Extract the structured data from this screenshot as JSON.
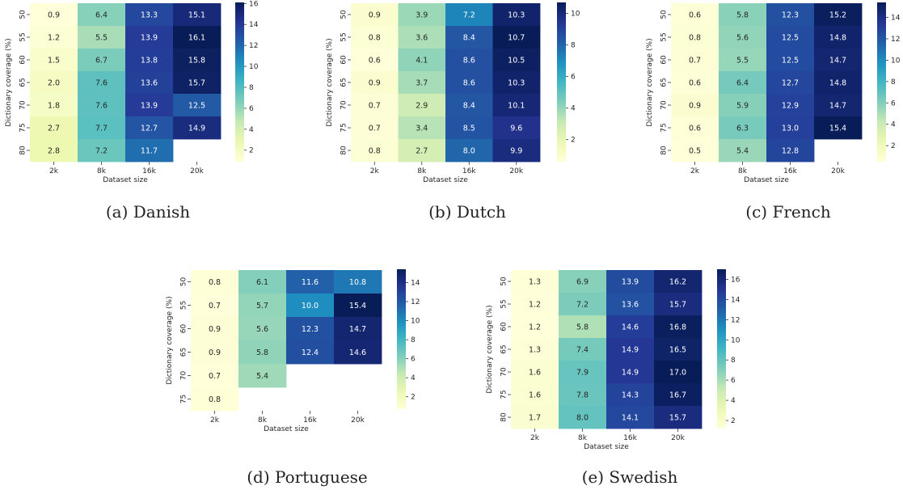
{
  "figure": {
    "charts": [
      {
        "caption": "(a) Danish"
      },
      {
        "caption": "(b) Dutch"
      },
      {
        "caption": "(c) French"
      },
      {
        "caption": "(d) Portuguese"
      },
      {
        "caption": "(e) Swedish"
      }
    ]
  },
  "chart_data": [
    {
      "type": "heatmap",
      "title": "",
      "xlabel": "Dataset size",
      "ylabel": "Dictionary coverage (%)",
      "x_categories": [
        "2k",
        "8k",
        "16k",
        "20k"
      ],
      "y_categories": [
        "50",
        "55",
        "60",
        "65",
        "70",
        "75",
        "80"
      ],
      "values": [
        [
          0.9,
          6.4,
          13.3,
          15.1
        ],
        [
          1.2,
          5.5,
          13.9,
          16.1
        ],
        [
          1.5,
          6.7,
          13.8,
          15.8
        ],
        [
          2.0,
          7.6,
          13.6,
          15.7
        ],
        [
          1.8,
          7.6,
          13.9,
          12.5
        ],
        [
          2.7,
          7.7,
          12.7,
          14.9
        ],
        [
          2.8,
          7.2,
          11.7,
          null
        ]
      ],
      "colorbar_ticks": [
        2,
        4,
        6,
        8,
        10,
        12,
        14,
        16
      ],
      "colorbar_range": [
        0.9,
        16.1
      ],
      "colormap": "YlGnBu"
    },
    {
      "type": "heatmap",
      "title": "",
      "xlabel": "Dataset size",
      "ylabel": "Dictionary coverage (%)",
      "x_categories": [
        "2k",
        "8k",
        "16k",
        "20k"
      ],
      "y_categories": [
        "50",
        "55",
        "60",
        "65",
        "70",
        "75",
        "80"
      ],
      "values": [
        [
          0.9,
          3.9,
          7.2,
          10.3
        ],
        [
          0.8,
          3.6,
          8.4,
          10.7
        ],
        [
          0.6,
          4.1,
          8.6,
          10.5
        ],
        [
          0.9,
          3.7,
          8.6,
          10.3
        ],
        [
          0.7,
          2.9,
          8.4,
          10.1
        ],
        [
          0.7,
          3.4,
          8.5,
          9.6
        ],
        [
          0.8,
          2.7,
          8.0,
          9.9
        ]
      ],
      "colorbar_ticks": [
        2,
        4,
        6,
        8,
        10
      ],
      "colorbar_range": [
        0.6,
        10.7
      ],
      "colormap": "YlGnBu"
    },
    {
      "type": "heatmap",
      "title": "",
      "xlabel": "Dataset size",
      "ylabel": "Dictionary coverage (%)",
      "x_categories": [
        "2k",
        "8k",
        "16k",
        "20k"
      ],
      "y_categories": [
        "50",
        "55",
        "60",
        "65",
        "70",
        "75",
        "80"
      ],
      "values": [
        [
          0.6,
          5.8,
          12.3,
          15.2
        ],
        [
          0.8,
          5.6,
          12.5,
          14.8
        ],
        [
          0.7,
          5.5,
          12.5,
          14.7
        ],
        [
          0.6,
          6.4,
          12.7,
          14.8
        ],
        [
          0.9,
          5.9,
          12.9,
          14.7
        ],
        [
          0.6,
          6.3,
          13.0,
          15.4
        ],
        [
          0.5,
          5.4,
          12.8,
          null
        ]
      ],
      "colorbar_ticks": [
        2,
        4,
        6,
        8,
        10,
        12,
        14
      ],
      "colorbar_range": [
        0.5,
        15.4
      ],
      "colormap": "YlGnBu"
    },
    {
      "type": "heatmap",
      "title": "",
      "xlabel": "Dataset size",
      "ylabel": "Dictionary coverage (%)",
      "x_categories": [
        "2k",
        "8k",
        "16k",
        "20k"
      ],
      "y_categories": [
        "50",
        "55",
        "60",
        "65",
        "70",
        "75"
      ],
      "values": [
        [
          0.8,
          6.1,
          11.6,
          10.8
        ],
        [
          0.7,
          5.7,
          10.0,
          15.4
        ],
        [
          0.9,
          5.6,
          12.3,
          14.7
        ],
        [
          0.9,
          5.8,
          12.4,
          14.6
        ],
        [
          0.7,
          5.4,
          null,
          null
        ],
        [
          0.8,
          null,
          null,
          null
        ]
      ],
      "colorbar_ticks": [
        2,
        4,
        6,
        8,
        10,
        12,
        14
      ],
      "colorbar_range": [
        0.7,
        15.4
      ],
      "colormap": "YlGnBu"
    },
    {
      "type": "heatmap",
      "title": "",
      "xlabel": "Dataset size",
      "ylabel": "Dictionary coverage (%)",
      "x_categories": [
        "2k",
        "8k",
        "16k",
        "20k"
      ],
      "y_categories": [
        "50",
        "55",
        "60",
        "65",
        "70",
        "75",
        "80"
      ],
      "values": [
        [
          1.3,
          6.9,
          13.9,
          16.2
        ],
        [
          1.2,
          7.2,
          13.6,
          15.7
        ],
        [
          1.2,
          5.8,
          14.6,
          16.8
        ],
        [
          1.3,
          7.4,
          14.9,
          16.5
        ],
        [
          1.6,
          7.9,
          14.9,
          17.0
        ],
        [
          1.6,
          7.8,
          14.3,
          16.7
        ],
        [
          1.7,
          8.0,
          14.1,
          15.7
        ]
      ],
      "colorbar_ticks": [
        2,
        4,
        6,
        8,
        10,
        12,
        14,
        16
      ],
      "colorbar_range": [
        1.2,
        17.0
      ],
      "colormap": "YlGnBu"
    }
  ]
}
